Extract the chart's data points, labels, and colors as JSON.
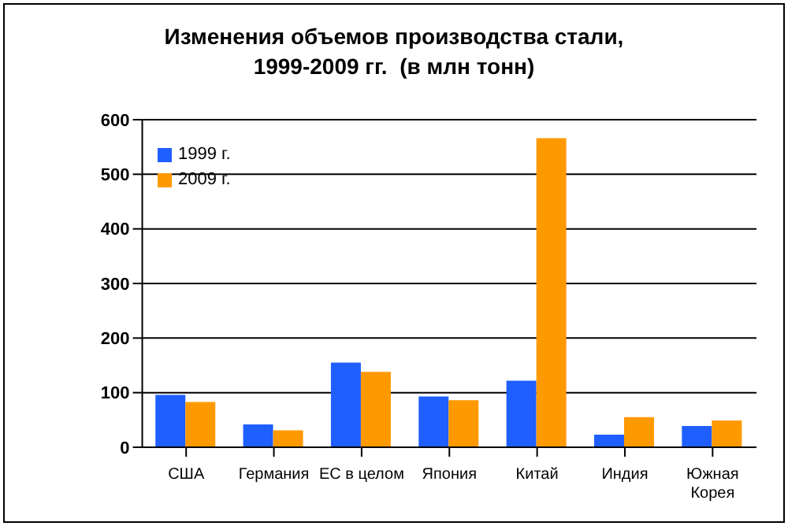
{
  "chart_data": {
    "type": "bar",
    "title": "Изменения объемов производства стали,\n1999-2009 гг.  (в млн тонн)",
    "categories": [
      "США",
      "Германия",
      "ЕС в целом",
      "Япония",
      "Китай",
      "Индия",
      "Южная Корея"
    ],
    "series": [
      {
        "name": "1999 г.",
        "color": "#1f5fff",
        "values": [
          96,
          42,
          155,
          93,
          122,
          23,
          39
        ]
      },
      {
        "name": "2009 г.",
        "color": "#ff9900",
        "values": [
          83,
          31,
          138,
          86,
          566,
          55,
          49
        ]
      }
    ],
    "ylim": [
      0,
      600
    ],
    "yticks": [
      0,
      100,
      200,
      300,
      400,
      500,
      600
    ],
    "grid": "y",
    "legend": "top left"
  }
}
